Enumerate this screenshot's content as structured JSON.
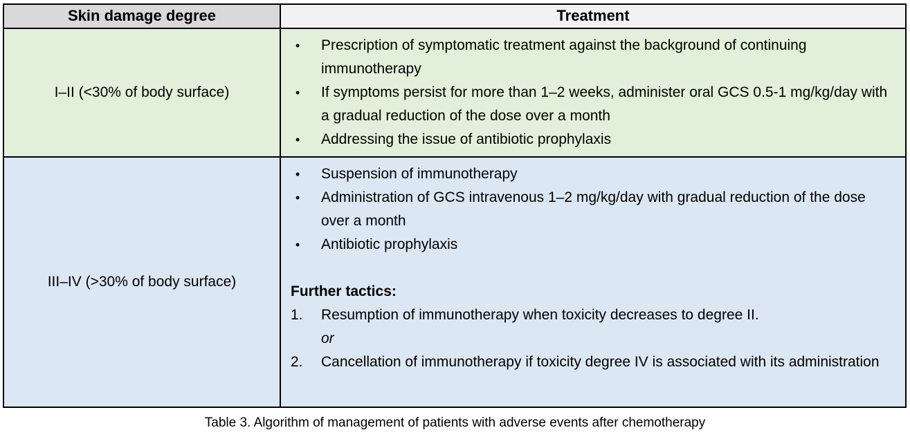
{
  "markers": {
    "bullet": "•"
  },
  "colors": {
    "header_left_bg": "#d9d9d9",
    "header_right_bg": "#f2f2f2",
    "row1_bg": "#e2efda",
    "row2_bg": "#dbe7f3",
    "border": "#000000",
    "text": "#000000"
  },
  "table": {
    "header": {
      "col1": "Skin damage degree",
      "col2": "Treatment"
    },
    "rows": [
      {
        "degree": "I–II (<30% of body surface)",
        "bullets": [
          "Prescription of symptomatic treatment against the background of continuing immunotherapy",
          "If symptoms persist for more than 1–2 weeks, administer oral GCS 0.5-1 mg/kg/day with a gradual reduction of the dose over a month",
          "Addressing the issue of antibiotic prophylaxis"
        ]
      },
      {
        "degree": "III–IV (>30% of body surface)",
        "bullets": [
          "Suspension of immunotherapy",
          "Administration of GCS intravenous 1–2 mg/kg/day with gradual reduction of the dose over a month",
          "Antibiotic prophylaxis"
        ],
        "further_tactics": {
          "heading": "Further tactics:",
          "items": [
            {
              "number": "1.",
              "text": "Resumption of immunotherapy when toxicity decreases to degree II.",
              "suffix": "or"
            },
            {
              "number": "2.",
              "text": "Cancellation of immunotherapy if toxicity degree IV is associated with its administration"
            }
          ]
        }
      }
    ]
  },
  "caption": "Table 3. Algorithm of management of patients with adverse events after chemotherapy"
}
